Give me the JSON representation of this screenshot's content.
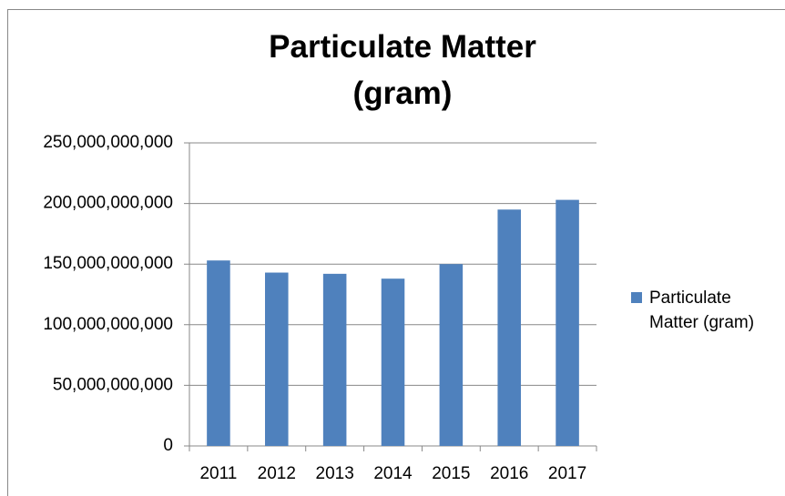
{
  "chart_data": {
    "type": "bar",
    "title": "Particulate Matter (gram)",
    "categories": [
      "2011",
      "2012",
      "2013",
      "2014",
      "2015",
      "2016",
      "2017"
    ],
    "series": [
      {
        "name": "Particulate Matter (gram)",
        "color": "#4f81bd",
        "values": [
          153000000000,
          143000000000,
          142000000000,
          138000000000,
          150000000000,
          195000000000,
          203000000000
        ]
      }
    ],
    "ylim": [
      0,
      250000000000
    ],
    "yticks": [
      0,
      {
        "value": 50000000000,
        "label": "50,000,000,000"
      },
      {
        "value": 100000000000,
        "label": "100,000,000,000"
      },
      {
        "value": 150000000000,
        "label": "150,000,000,000"
      },
      {
        "value": 200000000000,
        "label": "200,000,000,000"
      },
      {
        "value": 250000000000,
        "label": "250,000,000,000"
      }
    ],
    "grid": true,
    "legend": "right"
  }
}
